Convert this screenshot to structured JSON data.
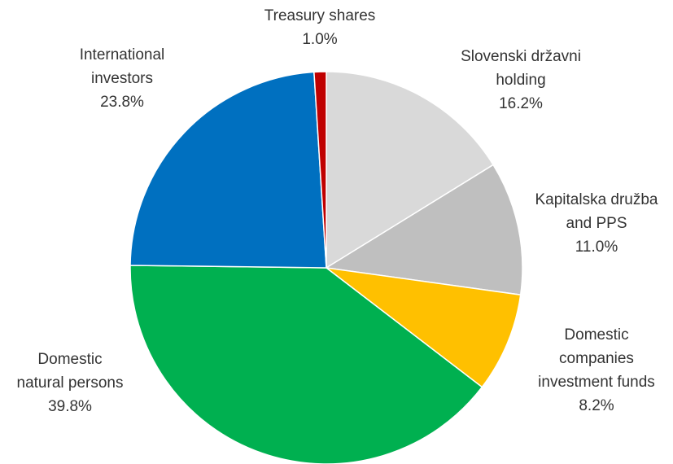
{
  "chart_data": {
    "type": "pie",
    "categories": [
      [
        "Slovenski državni",
        "holding"
      ],
      [
        "Kapitalska družba",
        "and PPS"
      ],
      [
        "Domestic",
        "companies",
        "investment funds"
      ],
      [
        "Domestic",
        "natural persons"
      ],
      [
        "International",
        "investors"
      ],
      [
        "Treasury shares"
      ]
    ],
    "values": [
      16.2,
      11.0,
      8.2,
      39.8,
      23.8,
      1.0
    ],
    "value_labels": [
      "16.2%",
      "11.0%",
      "8.2%",
      "39.8%",
      "23.8%",
      "1.0%"
    ],
    "colors": [
      "#d9d9d9",
      "#bfbfbf",
      "#ffc000",
      "#00b050",
      "#0070c0",
      "#c00000"
    ]
  }
}
